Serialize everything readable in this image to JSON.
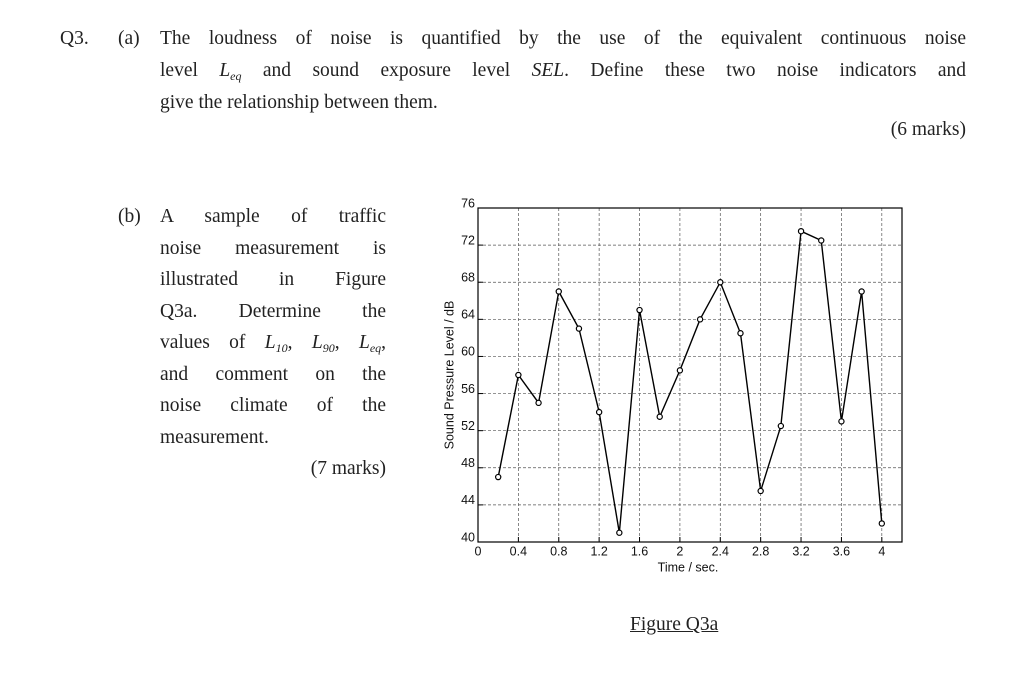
{
  "question": {
    "number": "Q3.",
    "part_a": {
      "label": "(a)",
      "lines": [
        [
          "The loudness of noise is quantified by the use of the equivalent continuous noise"
        ],
        [
          "level ",
          "L",
          "eq",
          " and sound exposure level ",
          "SEL",
          ". Define these two noise indicators and"
        ],
        [
          "give the relationship between them."
        ]
      ],
      "marks": "(6 marks)"
    },
    "part_b": {
      "label": "(b)",
      "lines": [
        [
          "A sample of traffic"
        ],
        [
          "noise measurement is"
        ],
        [
          "illustrated in Figure"
        ],
        [
          "Q3a. Determine the"
        ],
        [
          "values of ",
          "L",
          "10",
          ", ",
          "L",
          "90",
          ", ",
          "L",
          "eq",
          ","
        ],
        [
          "and comment on the"
        ],
        [
          "noise climate of the"
        ],
        [
          "measurement."
        ]
      ],
      "marks": "(7 marks)"
    },
    "figure_caption": "Figure Q3a"
  },
  "chart_data": {
    "type": "line",
    "xlabel": "Time / sec.",
    "ylabel": "Sound Pressure Level / dB",
    "x": [
      0.2,
      0.4,
      0.6,
      0.8,
      1.0,
      1.2,
      1.4,
      1.6,
      1.8,
      2.0,
      2.2,
      2.4,
      2.6,
      2.8,
      3.0,
      3.2,
      3.4,
      3.6,
      3.8,
      4.0
    ],
    "values": [
      47,
      58,
      55,
      67,
      63,
      54,
      41,
      65,
      53.5,
      58.5,
      64,
      68,
      62.5,
      45.5,
      52.5,
      73.5,
      72.5,
      53,
      67,
      42
    ],
    "color": "#000000",
    "xlim": [
      0,
      4.2
    ],
    "xticks": [
      0,
      0.4,
      0.8,
      1.2,
      1.6,
      2,
      2.4,
      2.8,
      3.2,
      3.6,
      4
    ],
    "ylim": [
      40,
      76
    ],
    "yticks": [
      40,
      44,
      48,
      52,
      56,
      60,
      64,
      68,
      72,
      76
    ],
    "grid": true
  }
}
